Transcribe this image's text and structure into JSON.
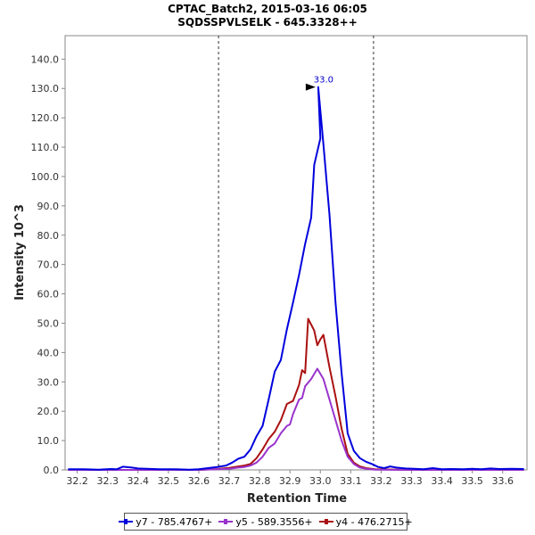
{
  "chart_data": {
    "type": "line",
    "title": "CPTAC_Batch2, 2015-03-16 06:05",
    "subtitle": "SQDSSPVLSELK - 645.3328++",
    "xlabel": "Retention Time",
    "ylabel": "Intensity 10^3",
    "xlim": [
      32.16,
      33.68
    ],
    "ylim": [
      0,
      148
    ],
    "x_ticks": [
      "32.2",
      "32.3",
      "32.4",
      "32.5",
      "32.6",
      "32.7",
      "32.8",
      "32.9",
      "33.0",
      "33.1",
      "33.2",
      "33.3",
      "33.4",
      "33.5",
      "33.6"
    ],
    "y_ticks": [
      "0.0",
      "10.0",
      "20.0",
      "30.0",
      "40.0",
      "50.0",
      "60.0",
      "70.0",
      "80.0",
      "90.0",
      "100.0",
      "110.0",
      "120.0",
      "130.0",
      "140.0"
    ],
    "integration_bounds": [
      32.665,
      33.175
    ],
    "peak_annotation": {
      "x": 32.993,
      "y": 130.5,
      "label": "33.0"
    },
    "series": [
      {
        "name": "y7 - 785.4767+",
        "color": "#0000dd",
        "points": [
          [
            32.17,
            0.2
          ],
          [
            32.22,
            0.2
          ],
          [
            32.27,
            0.1
          ],
          [
            32.31,
            0.3
          ],
          [
            32.33,
            0.2
          ],
          [
            32.35,
            1.1
          ],
          [
            32.38,
            0.8
          ],
          [
            32.4,
            0.5
          ],
          [
            32.43,
            0.4
          ],
          [
            32.47,
            0.2
          ],
          [
            32.52,
            0.2
          ],
          [
            32.57,
            0.1
          ],
          [
            32.6,
            0.2
          ],
          [
            32.63,
            0.6
          ],
          [
            32.66,
            1.0
          ],
          [
            32.69,
            1.5
          ],
          [
            32.71,
            2.5
          ],
          [
            32.73,
            3.8
          ],
          [
            32.75,
            4.5
          ],
          [
            32.77,
            7.0
          ],
          [
            32.79,
            11.5
          ],
          [
            32.81,
            15.0
          ],
          [
            32.83,
            24.0
          ],
          [
            32.85,
            33.5
          ],
          [
            32.87,
            37.5
          ],
          [
            32.89,
            48.0
          ],
          [
            32.91,
            57.0
          ],
          [
            32.93,
            66.5
          ],
          [
            32.95,
            77.0
          ],
          [
            32.97,
            86.0
          ],
          [
            32.98,
            104.0
          ],
          [
            33.0,
            113.0
          ],
          [
            32.993,
            130.5
          ],
          [
            33.01,
            111.0
          ],
          [
            33.03,
            87.0
          ],
          [
            33.05,
            57.0
          ],
          [
            33.07,
            33.0
          ],
          [
            33.09,
            12.5
          ],
          [
            33.11,
            6.5
          ],
          [
            33.13,
            4.0
          ],
          [
            33.15,
            2.8
          ],
          [
            33.17,
            2.0
          ],
          [
            33.19,
            1.0
          ],
          [
            33.21,
            0.6
          ],
          [
            33.23,
            1.2
          ],
          [
            33.25,
            0.8
          ],
          [
            33.28,
            0.5
          ],
          [
            33.31,
            0.4
          ],
          [
            33.34,
            0.2
          ],
          [
            33.37,
            0.6
          ],
          [
            33.4,
            0.2
          ],
          [
            33.43,
            0.3
          ],
          [
            33.47,
            0.2
          ],
          [
            33.5,
            0.4
          ],
          [
            33.53,
            0.2
          ],
          [
            33.56,
            0.5
          ],
          [
            33.59,
            0.3
          ],
          [
            33.63,
            0.4
          ],
          [
            33.67,
            0.3
          ]
        ]
      },
      {
        "name": "y5 - 589.3556+",
        "color": "#9933cc",
        "points": [
          [
            32.17,
            0.0
          ],
          [
            32.4,
            0.0
          ],
          [
            32.6,
            0.0
          ],
          [
            32.66,
            0.2
          ],
          [
            32.7,
            0.4
          ],
          [
            32.73,
            0.8
          ],
          [
            32.75,
            1.0
          ],
          [
            32.77,
            1.5
          ],
          [
            32.79,
            2.5
          ],
          [
            32.81,
            4.5
          ],
          [
            32.83,
            7.5
          ],
          [
            32.85,
            9.0
          ],
          [
            32.87,
            12.5
          ],
          [
            32.89,
            15.0
          ],
          [
            32.9,
            15.5
          ],
          [
            32.91,
            19.0
          ],
          [
            32.93,
            24.0
          ],
          [
            32.94,
            24.5
          ],
          [
            32.95,
            28.5
          ],
          [
            32.97,
            31.0
          ],
          [
            32.99,
            34.5
          ],
          [
            33.01,
            31.0
          ],
          [
            33.03,
            24.0
          ],
          [
            33.05,
            17.0
          ],
          [
            33.07,
            10.0
          ],
          [
            33.09,
            4.5
          ],
          [
            33.11,
            2.0
          ],
          [
            33.13,
            0.8
          ],
          [
            33.15,
            0.4
          ],
          [
            33.18,
            0.1
          ],
          [
            33.3,
            0.0
          ],
          [
            33.67,
            0.0
          ]
        ]
      },
      {
        "name": "y4 - 476.2715+",
        "color": "#aa1111",
        "points": [
          [
            32.17,
            0.0
          ],
          [
            32.4,
            0.0
          ],
          [
            32.6,
            0.0
          ],
          [
            32.66,
            0.3
          ],
          [
            32.7,
            0.7
          ],
          [
            32.73,
            1.2
          ],
          [
            32.75,
            1.5
          ],
          [
            32.77,
            2.0
          ],
          [
            32.79,
            4.0
          ],
          [
            32.81,
            7.0
          ],
          [
            32.83,
            10.5
          ],
          [
            32.85,
            13.0
          ],
          [
            32.87,
            17.0
          ],
          [
            32.89,
            22.5
          ],
          [
            32.91,
            23.5
          ],
          [
            32.93,
            29.0
          ],
          [
            32.94,
            34.0
          ],
          [
            32.95,
            33.0
          ],
          [
            32.96,
            51.5
          ],
          [
            32.98,
            47.5
          ],
          [
            32.99,
            42.5
          ],
          [
            33.0,
            44.5
          ],
          [
            33.01,
            46.0
          ],
          [
            33.03,
            35.0
          ],
          [
            33.05,
            25.0
          ],
          [
            33.07,
            14.0
          ],
          [
            33.09,
            5.5
          ],
          [
            33.11,
            2.5
          ],
          [
            33.13,
            1.2
          ],
          [
            33.15,
            0.6
          ],
          [
            33.18,
            0.2
          ],
          [
            33.3,
            0.0
          ],
          [
            33.67,
            0.0
          ]
        ]
      }
    ]
  }
}
